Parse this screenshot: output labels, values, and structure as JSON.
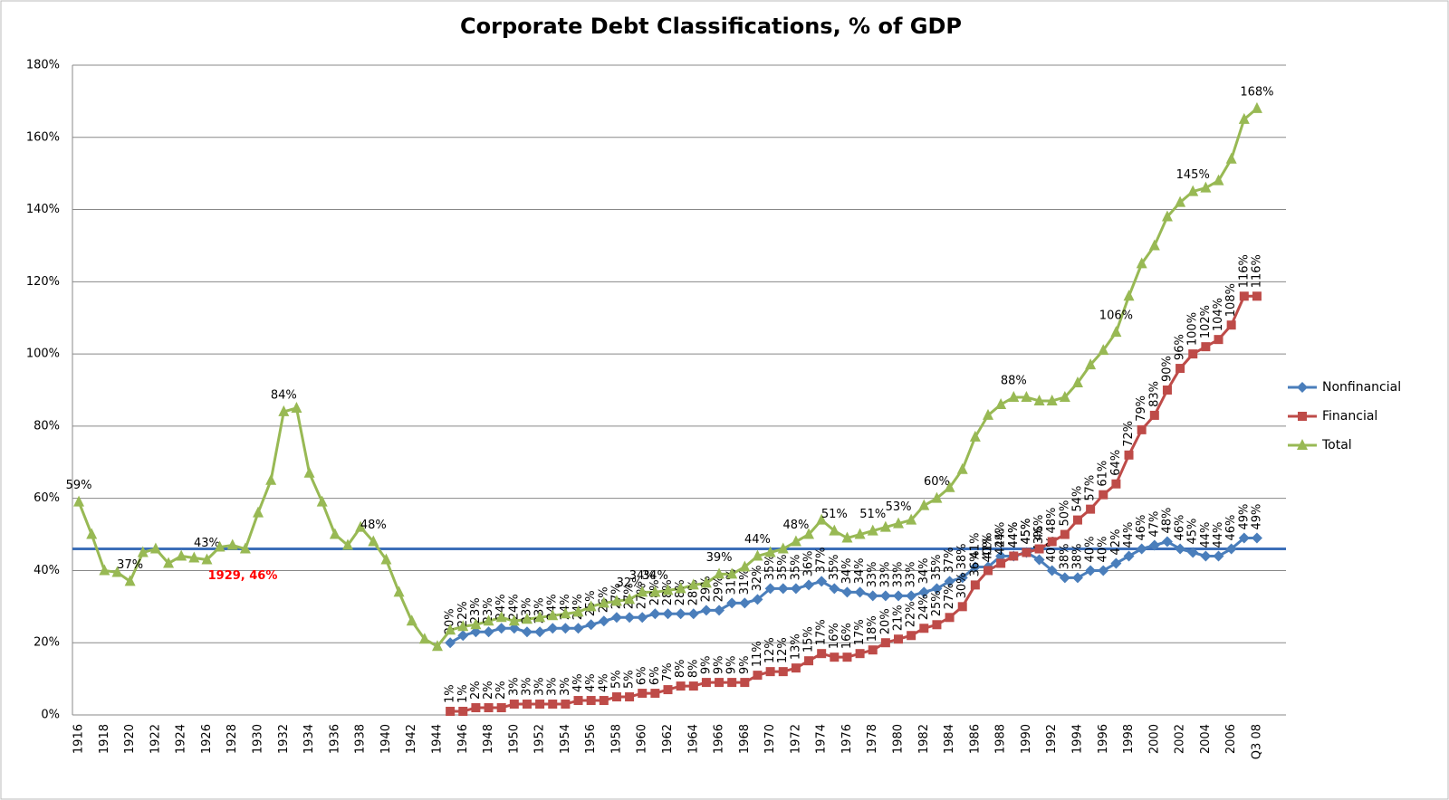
{
  "chart_data": {
    "type": "line",
    "title": "Corporate Debt Classifications, % of GDP",
    "categories": [
      "1916",
      null,
      "1918",
      null,
      "1920",
      null,
      "1922",
      null,
      "1924",
      null,
      "1926",
      null,
      "1928",
      null,
      "1930",
      null,
      "1932",
      null,
      "1934",
      null,
      "1936",
      null,
      "1938",
      null,
      "1940",
      null,
      "1942",
      null,
      "1944",
      null,
      "1946",
      null,
      "1948",
      null,
      "1950",
      null,
      "1952",
      null,
      "1954",
      null,
      "1956",
      null,
      "1958",
      null,
      "1960",
      null,
      "1962",
      null,
      "1964",
      null,
      "1966",
      null,
      "1968",
      null,
      "1970",
      null,
      "1972",
      null,
      "1974",
      null,
      "1976",
      null,
      "1978",
      null,
      "1980",
      null,
      "1982",
      null,
      "1984",
      null,
      "1986",
      null,
      "1988",
      null,
      "1990",
      null,
      "1992",
      null,
      "1994",
      null,
      "1996",
      null,
      "1998",
      null,
      "2000",
      null,
      "2002",
      null,
      "2004",
      null,
      "2006",
      null,
      "Q3 08"
    ],
    "series": [
      {
        "name": "Nonfinancial",
        "color": "#4a7ebb",
        "marker": "diamond",
        "values": [
          null,
          null,
          null,
          null,
          null,
          null,
          null,
          null,
          null,
          null,
          null,
          null,
          null,
          null,
          null,
          null,
          null,
          null,
          null,
          null,
          null,
          null,
          null,
          null,
          null,
          null,
          null,
          null,
          null,
          20,
          22,
          23,
          23,
          24,
          24,
          23,
          23,
          24,
          24,
          24,
          25,
          26,
          27,
          27,
          27,
          28,
          28,
          28,
          28,
          29,
          29,
          31,
          31,
          32,
          35,
          35,
          35,
          36,
          37,
          35,
          34,
          34,
          33,
          33,
          33,
          33,
          34,
          35,
          37,
          38,
          41,
          41,
          44,
          44,
          45,
          43,
          40,
          38,
          38,
          40,
          40,
          42,
          44,
          46,
          47,
          48,
          46,
          45,
          44,
          44,
          46,
          49,
          49
        ],
        "value_labels": [
          null,
          null,
          null,
          null,
          null,
          null,
          null,
          null,
          null,
          null,
          null,
          null,
          null,
          null,
          null,
          null,
          null,
          null,
          null,
          null,
          null,
          null,
          null,
          null,
          null,
          null,
          null,
          null,
          null,
          "20%",
          "22%",
          "23%",
          "23%",
          "24%",
          "24%",
          "23%",
          "23%",
          "24%",
          "24%",
          "24%",
          "25%",
          "26%",
          "27%",
          "27%",
          "27%",
          "28%",
          "28%",
          "28%",
          "28%",
          "29%",
          "29%",
          "31%",
          "31%",
          "32%",
          "35%",
          "35%",
          "35%",
          "36%",
          "37%",
          "35%",
          "34%",
          "34%",
          "33%",
          "33%",
          "33%",
          "33%",
          "34%",
          "35%",
          "37%",
          "38%",
          "41%",
          "41%",
          "44%",
          "44%",
          "45%",
          "43%",
          "40%",
          "38%",
          "38%",
          "40%",
          "40%",
          "42%",
          "44%",
          "46%",
          "47%",
          "48%",
          "46%",
          "45%",
          "44%",
          "44%",
          "46%",
          "49%",
          "49%"
        ]
      },
      {
        "name": "Financial",
        "color": "#be4b48",
        "marker": "square",
        "values": [
          null,
          null,
          null,
          null,
          null,
          null,
          null,
          null,
          null,
          null,
          null,
          null,
          null,
          null,
          null,
          null,
          null,
          null,
          null,
          null,
          null,
          null,
          null,
          null,
          null,
          null,
          null,
          null,
          null,
          1,
          1,
          2,
          2,
          2,
          3,
          3,
          3,
          3,
          3,
          4,
          4,
          4,
          5,
          5,
          6,
          6,
          7,
          8,
          8,
          9,
          9,
          9,
          9,
          11,
          12,
          12,
          13,
          15,
          17,
          16,
          16,
          17,
          18,
          20,
          21,
          22,
          24,
          25,
          27,
          30,
          36,
          40,
          42,
          44,
          45,
          46,
          48,
          50,
          54,
          57,
          61,
          64,
          72,
          79,
          83,
          90,
          96,
          100,
          102,
          104,
          108,
          116,
          116
        ],
        "value_labels": [
          null,
          null,
          null,
          null,
          null,
          null,
          null,
          null,
          null,
          null,
          null,
          null,
          null,
          null,
          null,
          null,
          null,
          null,
          null,
          null,
          null,
          null,
          null,
          null,
          null,
          null,
          null,
          null,
          null,
          "1%",
          "1%",
          "2%",
          "2%",
          "2%",
          "3%",
          "3%",
          "3%",
          "3%",
          "3%",
          "4%",
          "4%",
          "4%",
          "5%",
          "5%",
          "6%",
          "6%",
          "7%",
          "8%",
          "8%",
          "9%",
          "9%",
          "9%",
          "9%",
          "11%",
          "12%",
          "12%",
          "13%",
          "15%",
          "17%",
          "16%",
          "16%",
          "17%",
          "18%",
          "20%",
          "21%",
          "22%",
          "24%",
          "25%",
          "27%",
          "30%",
          "36%",
          "40%",
          "42%",
          "44%",
          "45%",
          "46%",
          "48%",
          "50%",
          "54%",
          "57%",
          "61%",
          "64%",
          "72%",
          "79%",
          "83%",
          "90%",
          "96%",
          "100%",
          "102%",
          "104%",
          "108%",
          "116%",
          "116%"
        ]
      },
      {
        "name": "Total",
        "color": "#98b954",
        "marker": "triangle",
        "values": [
          59,
          50,
          40,
          39.5,
          37,
          45,
          46,
          42,
          44,
          43.5,
          43,
          46.5,
          47,
          46,
          56,
          65,
          84,
          85,
          67,
          59,
          50,
          47,
          52,
          48,
          43,
          34,
          26,
          21,
          19,
          23.5,
          24.5,
          25,
          26,
          27,
          26,
          26.5,
          27,
          27.5,
          28,
          28.5,
          30,
          31,
          31.5,
          32,
          34,
          34,
          34.5,
          35,
          36,
          36.5,
          39,
          39,
          41,
          44,
          45,
          46,
          48,
          50,
          54,
          51,
          49,
          50,
          51,
          52,
          53,
          54,
          58,
          60,
          63,
          68,
          77,
          83,
          86,
          88,
          88,
          87,
          87,
          88,
          92,
          97,
          101,
          106,
          116,
          125,
          130,
          138,
          142,
          145,
          146,
          148,
          154,
          165,
          168
        ],
        "value_labels": [
          "59%",
          null,
          null,
          null,
          "37%",
          null,
          null,
          null,
          null,
          null,
          "43%",
          null,
          null,
          null,
          null,
          null,
          "84%",
          null,
          null,
          null,
          null,
          null,
          null,
          "48%",
          null,
          null,
          null,
          null,
          null,
          null,
          null,
          null,
          null,
          null,
          null,
          null,
          null,
          null,
          null,
          null,
          null,
          null,
          null,
          "32%",
          "34%",
          "34%",
          null,
          null,
          null,
          null,
          "39%",
          null,
          null,
          "44%",
          null,
          null,
          "48%",
          null,
          null,
          "51%",
          null,
          null,
          "51%",
          null,
          "53%",
          null,
          null,
          "60%",
          null,
          null,
          null,
          null,
          null,
          "88%",
          null,
          null,
          null,
          null,
          null,
          null,
          null,
          "106%",
          null,
          null,
          null,
          null,
          null,
          "145%",
          null,
          null,
          null,
          null,
          "168%"
        ]
      }
    ],
    "ylim": [
      0,
      180
    ],
    "yticks": [
      {
        "value": 0,
        "label": "0%"
      },
      {
        "value": 20,
        "label": "20%"
      },
      {
        "value": 40,
        "label": "40%"
      },
      {
        "value": 60,
        "label": "60%"
      },
      {
        "value": 80,
        "label": "80%"
      },
      {
        "value": 100,
        "label": "100%"
      },
      {
        "value": 120,
        "label": "120%"
      },
      {
        "value": 140,
        "label": "140%"
      },
      {
        "value": 160,
        "label": "160%"
      },
      {
        "value": 180,
        "label": "180%"
      }
    ],
    "grid": true,
    "legend": "right",
    "reference_line": {
      "value": 46,
      "color": "#3c6fb8",
      "label": "1929, 46%",
      "label_color": "#ff0000"
    }
  }
}
